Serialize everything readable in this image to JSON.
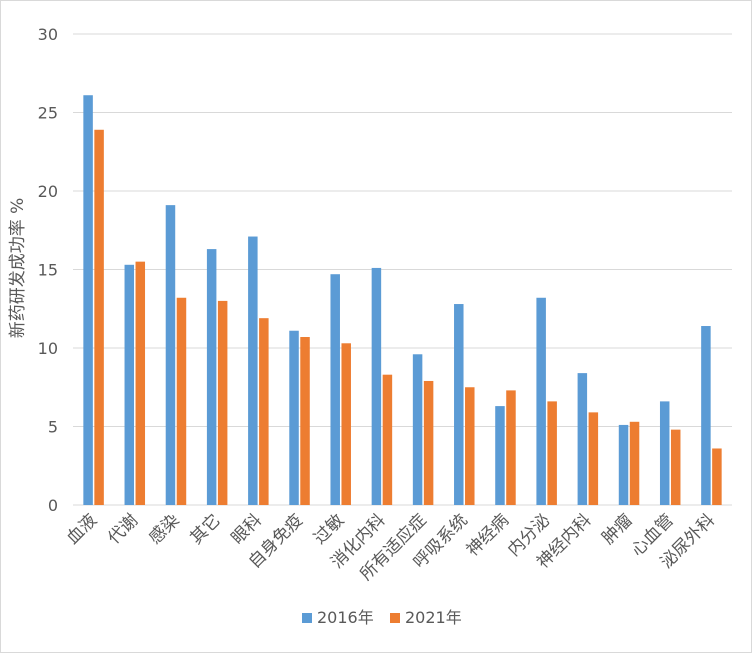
{
  "chart_data": {
    "type": "bar",
    "ylabel": "新药研发成功率 %",
    "ylim": [
      0,
      30
    ],
    "yticks": [
      0,
      5,
      10,
      15,
      20,
      25,
      30
    ],
    "grid": true,
    "legend_position": "bottom",
    "categories": [
      "血液",
      "代谢",
      "感染",
      "其它",
      "眼科",
      "自身免疫",
      "过敏",
      "消化内科",
      "所有适应症",
      "呼吸系统",
      "神经病",
      "内分泌",
      "神经内科",
      "肿瘤",
      "心血管",
      "泌尿外科"
    ],
    "series": [
      {
        "name": "2016年",
        "color": "#5b9bd5",
        "values": [
          26.1,
          15.3,
          19.1,
          16.3,
          17.1,
          11.1,
          14.7,
          15.1,
          9.6,
          12.8,
          6.3,
          13.2,
          8.4,
          5.1,
          6.6,
          11.4
        ]
      },
      {
        "name": "2021年",
        "color": "#ed7d31",
        "values": [
          23.9,
          15.5,
          13.2,
          13.0,
          11.9,
          10.7,
          10.3,
          8.3,
          7.9,
          7.5,
          7.3,
          6.6,
          5.9,
          5.3,
          4.8,
          3.6
        ]
      }
    ]
  }
}
